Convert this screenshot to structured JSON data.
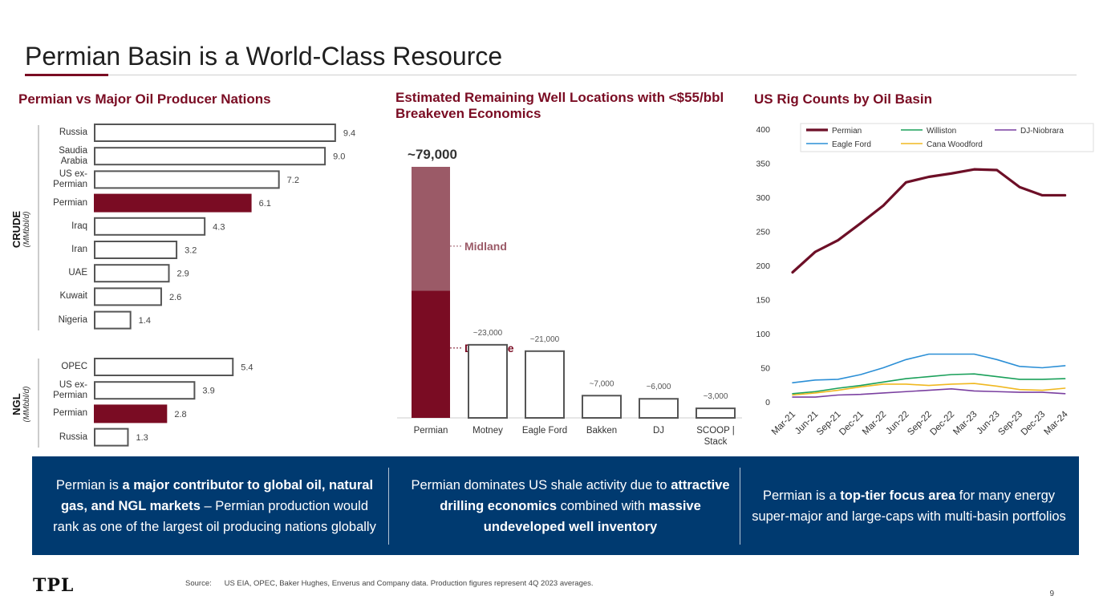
{
  "page": {
    "title": "Permian Basin is a World-Class Resource",
    "page_number": "9",
    "logo_text": "TPL",
    "source_label": "Source:",
    "source_text": "US EIA, OPEC, Baker Hughes, Enverus and Company data. Production figures represent 4Q 2023 averages."
  },
  "colors": {
    "accent": "#7a0c23",
    "midland": "#9b5a67",
    "banner": "#003a70",
    "bar_outline": "#555555"
  },
  "sections": {
    "left_title": "Permian vs Major Oil Producer Nations",
    "middle_title": "Estimated Remaining Well Locations with <$55/bbl Breakeven Economics",
    "right_title": "US Rig Counts by Oil Basin"
  },
  "left_axis": {
    "crude_label": "CRUDE",
    "crude_unit": "(MMbbl/d)",
    "ngl_label": "NGL",
    "ngl_unit": "(MMbbl/d)"
  },
  "banner": {
    "col1": [
      {
        "t": "Permian is ",
        "b": false
      },
      {
        "t": "a major contributor to global oil, natural gas, and NGL markets",
        "b": true
      },
      {
        "t": " – Permian production would rank as one of the largest oil producing nations globally",
        "b": false
      }
    ],
    "col2": [
      {
        "t": "Permian dominates US shale activity due to ",
        "b": false
      },
      {
        "t": "attractive drilling economics",
        "b": true
      },
      {
        "t": " combined with ",
        "b": false
      },
      {
        "t": "massive undeveloped well inventory",
        "b": true
      }
    ],
    "col3": [
      {
        "t": "Permian is a ",
        "b": false
      },
      {
        "t": "top-tier focus area",
        "b": true
      },
      {
        "t": " for many energy super-major and large-caps with multi-basin portfolios",
        "b": false
      }
    ]
  },
  "chart_data": [
    {
      "type": "bar",
      "orientation": "horizontal",
      "groups": [
        {
          "name": "CRUDE",
          "categories": [
            "Russia",
            "Saudia Arabia",
            "US ex-Permian",
            "Permian",
            "Iraq",
            "Iran",
            "UAE",
            "Kuwait",
            "Nigeria"
          ],
          "values": [
            9.4,
            9.0,
            7.2,
            6.1,
            4.3,
            3.2,
            2.9,
            2.6,
            1.4
          ],
          "labels": [
            "9.4",
            "9.0",
            "7.2",
            "6.1",
            "4.3",
            "3.2",
            "2.9",
            "2.6",
            "1.4"
          ],
          "highlight": "Permian"
        },
        {
          "name": "NGL",
          "categories": [
            "OPEC",
            "US ex-Permian",
            "Permian",
            "Russia"
          ],
          "values": [
            5.4,
            3.9,
            2.8,
            1.3
          ],
          "labels": [
            "5.4",
            "3.9",
            "2.8",
            "1.3"
          ],
          "highlight": "Permian"
        }
      ],
      "xlim": [
        0,
        10
      ]
    },
    {
      "type": "bar",
      "categories": [
        "Permian",
        "Motney",
        "Eagle Ford",
        "Bakken",
        "DJ",
        "SCOOP | Stack"
      ],
      "values": [
        79000,
        23000,
        21000,
        7000,
        6000,
        3000
      ],
      "labels": [
        "~79,000",
        "~23,000",
        "~21,000",
        "~7,000",
        "~6,000",
        "~3,000"
      ],
      "stack_segments": {
        "Delaware": 40000,
        "Midland": 39000
      },
      "stack_labels": [
        "Midland",
        "Delaware"
      ],
      "ylim": [
        0,
        80000
      ]
    },
    {
      "type": "line",
      "x": [
        "Mar-21",
        "Jun-21",
        "Sep-21",
        "Dec-21",
        "Mar-22",
        "Jun-22",
        "Sep-22",
        "Dec-22",
        "Mar-23",
        "Jun-23",
        "Sep-23",
        "Dec-23",
        "Mar-24"
      ],
      "series": [
        {
          "name": "Permian",
          "color": "#6d0f27",
          "values": [
            190,
            220,
            237,
            262,
            288,
            322,
            330,
            335,
            341,
            340,
            315,
            303,
            303
          ]
        },
        {
          "name": "Williston",
          "color": "#1aa05a",
          "values": [
            12,
            15,
            20,
            24,
            29,
            34,
            37,
            40,
            41,
            37,
            33,
            33,
            34
          ]
        },
        {
          "name": "DJ-Niobrara",
          "color": "#7a3fa0",
          "values": [
            7,
            7,
            10,
            11,
            13,
            15,
            17,
            19,
            16,
            15,
            14,
            14,
            12
          ]
        },
        {
          "name": "Eagle Ford",
          "color": "#2b8fd6",
          "values": [
            28,
            32,
            33,
            40,
            50,
            62,
            70,
            70,
            70,
            62,
            52,
            50,
            53
          ]
        },
        {
          "name": "Cana Woodford",
          "color": "#f0b820",
          "values": [
            10,
            13,
            17,
            22,
            26,
            26,
            24,
            26,
            27,
            23,
            18,
            17,
            20
          ]
        }
      ],
      "ylim": [
        0,
        400
      ],
      "yticks": [
        0,
        50,
        100,
        150,
        200,
        250,
        300,
        350,
        400
      ],
      "legend": "top",
      "grid": false
    }
  ]
}
